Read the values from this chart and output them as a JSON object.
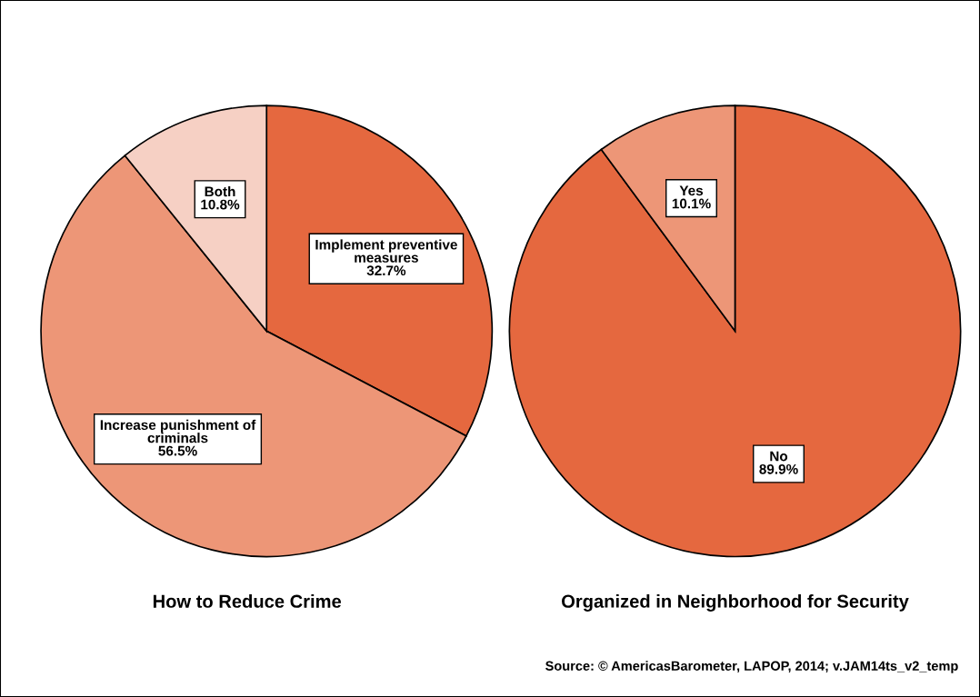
{
  "chart_data": [
    {
      "type": "pie",
      "title": "How to Reduce Crime",
      "categories": [
        "Implement preventive measures",
        "Increase punishment of criminals",
        "Both"
      ],
      "values": [
        32.7,
        56.5,
        10.8
      ],
      "colors": [
        "#e5683f",
        "#ed9677",
        "#f6d0c4"
      ],
      "value_labels": [
        "32.7%",
        "56.5%",
        "10.8%"
      ]
    },
    {
      "type": "pie",
      "title": "Organized in Neighborhood for Security",
      "categories": [
        "No",
        "Yes"
      ],
      "values": [
        89.9,
        10.1
      ],
      "colors": [
        "#e5683f",
        "#ed9677"
      ],
      "value_labels": [
        "89.9%",
        "10.1%"
      ],
      "annotations": [
        "Source: © AmericasBarometer, LAPOP, 2014; v.JAM14ts_v2_temp"
      ]
    }
  ]
}
